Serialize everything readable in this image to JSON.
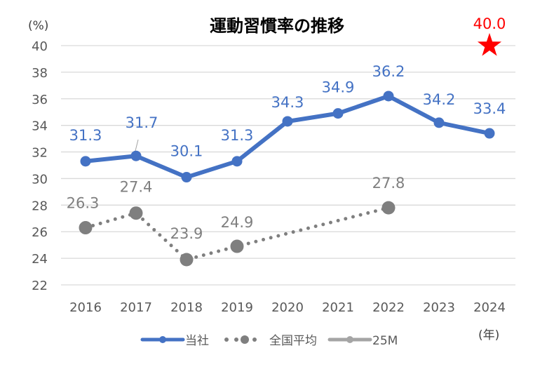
{
  "chart_data": {
    "type": "line",
    "title": "運動習慣率の推移",
    "ylabel": "(%)",
    "xlabel": "(年)",
    "ylim": [
      22,
      40
    ],
    "yticks": [
      22,
      24,
      26,
      28,
      30,
      32,
      34,
      36,
      38,
      40
    ],
    "grid": true,
    "legend_position": "bottom",
    "categories": [
      "2016",
      "2017",
      "2018",
      "2019",
      "2020",
      "2021",
      "2022",
      "2023",
      "2024"
    ],
    "series": [
      {
        "name": "当社",
        "style": "solid",
        "color": "#4472C4",
        "values": [
          31.3,
          31.7,
          30.1,
          31.3,
          34.3,
          34.9,
          36.2,
          34.2,
          33.4
        ]
      },
      {
        "name": "全国平均",
        "style": "dotted",
        "color": "#7F7F7F",
        "values": [
          26.3,
          27.4,
          23.9,
          24.9,
          null,
          null,
          27.8,
          null,
          null
        ]
      },
      {
        "name": "25M",
        "style": "solid",
        "color": "#A5A5A5",
        "values": [
          null,
          null,
          null,
          null,
          null,
          null,
          null,
          null,
          40.0
        ]
      }
    ],
    "target_marker": {
      "category": "2024",
      "value": "40.0",
      "color": "#FF0000",
      "icon": "star-icon"
    }
  }
}
